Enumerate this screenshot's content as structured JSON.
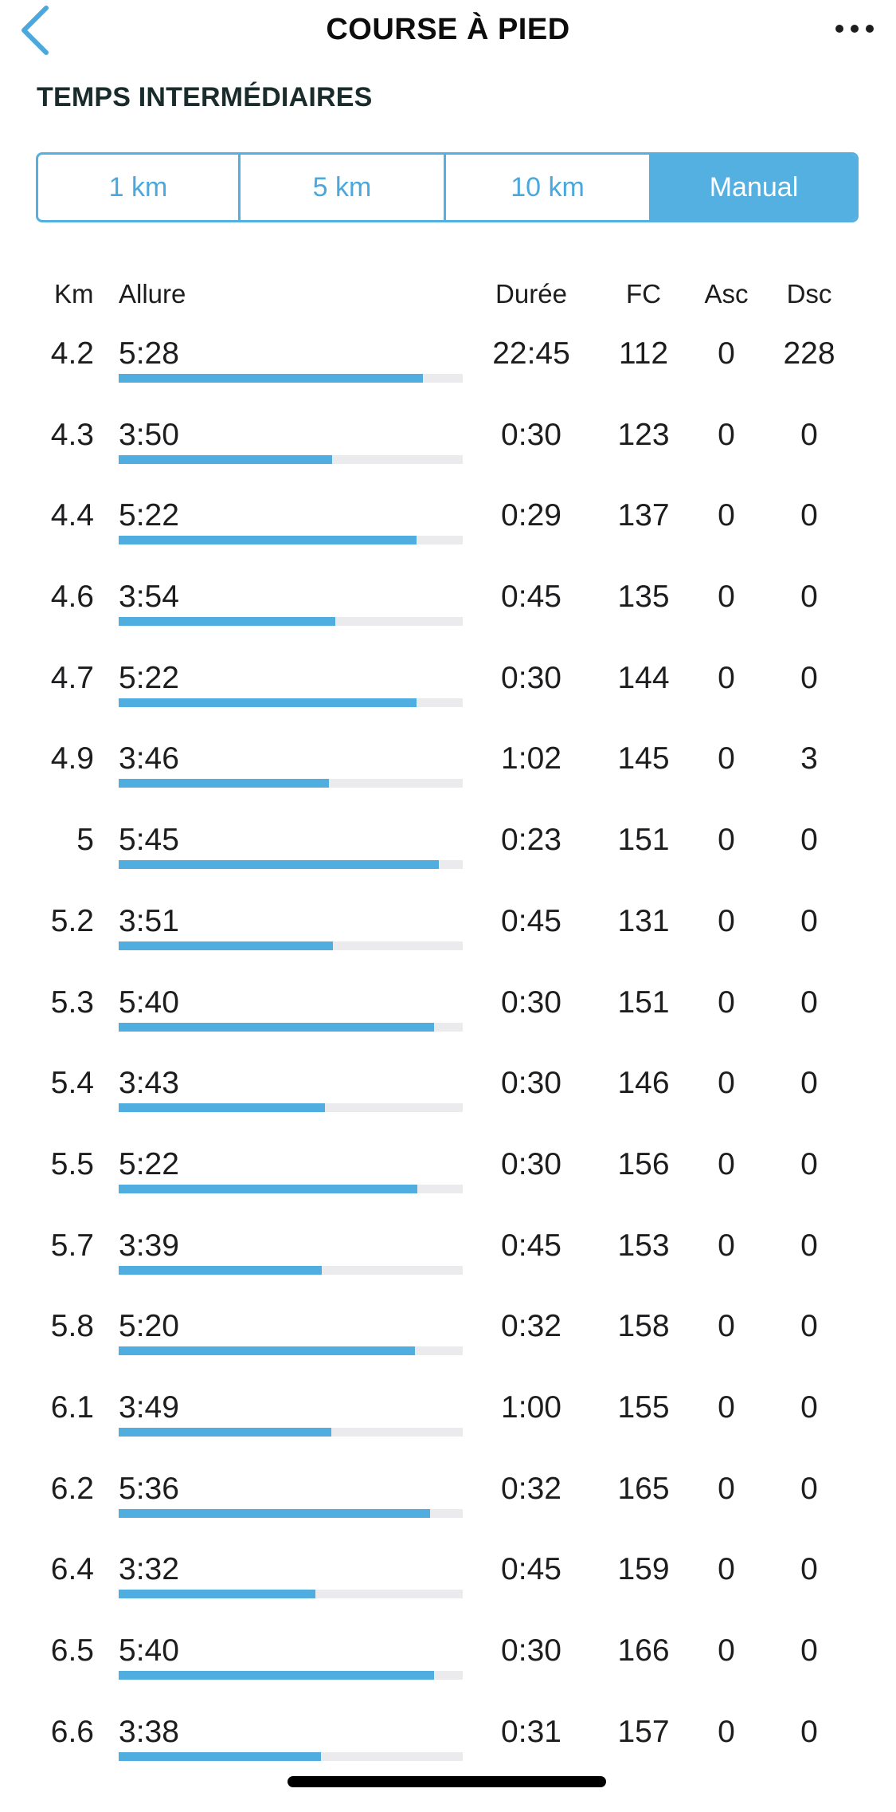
{
  "nav": {
    "title": "COURSE À PIED",
    "back_icon": "chevron-left-icon",
    "more_icon": "ellipsis-icon",
    "accent_color": "#54b0e0"
  },
  "section_title": "TEMPS INTERMÉDIAIRES",
  "segments": [
    {
      "label": "1 km",
      "selected": false
    },
    {
      "label": "5 km",
      "selected": false
    },
    {
      "label": "10 km",
      "selected": false
    },
    {
      "label": "Manual",
      "selected": true
    }
  ],
  "table": {
    "headers": {
      "km": "Km",
      "pace": "Allure",
      "duration": "Durée",
      "hr": "FC",
      "asc": "Asc",
      "dsc": "Dsc"
    },
    "rows": [
      {
        "km": "4.2",
        "pace": "5:28",
        "pace_fraction": 0.885,
        "duration": "22:45",
        "hr": "112",
        "asc": "0",
        "dsc": "228"
      },
      {
        "km": "4.3",
        "pace": "3:50",
        "pace_fraction": 0.62,
        "duration": "0:30",
        "hr": "123",
        "asc": "0",
        "dsc": "0"
      },
      {
        "km": "4.4",
        "pace": "5:22",
        "pace_fraction": 0.865,
        "duration": "0:29",
        "hr": "137",
        "asc": "0",
        "dsc": "0"
      },
      {
        "km": "4.6",
        "pace": "3:54",
        "pace_fraction": 0.63,
        "duration": "0:45",
        "hr": "135",
        "asc": "0",
        "dsc": "0"
      },
      {
        "km": "4.7",
        "pace": "5:22",
        "pace_fraction": 0.865,
        "duration": "0:30",
        "hr": "144",
        "asc": "0",
        "dsc": "0"
      },
      {
        "km": "4.9",
        "pace": "3:46",
        "pace_fraction": 0.61,
        "duration": "1:02",
        "hr": "145",
        "asc": "0",
        "dsc": "3"
      },
      {
        "km": "5",
        "pace": "5:45",
        "pace_fraction": 0.93,
        "duration": "0:23",
        "hr": "151",
        "asc": "0",
        "dsc": "0"
      },
      {
        "km": "5.2",
        "pace": "3:51",
        "pace_fraction": 0.623,
        "duration": "0:45",
        "hr": "131",
        "asc": "0",
        "dsc": "0"
      },
      {
        "km": "5.3",
        "pace": "5:40",
        "pace_fraction": 0.917,
        "duration": "0:30",
        "hr": "151",
        "asc": "0",
        "dsc": "0"
      },
      {
        "km": "5.4",
        "pace": "3:43",
        "pace_fraction": 0.6,
        "duration": "0:30",
        "hr": "146",
        "asc": "0",
        "dsc": "0"
      },
      {
        "km": "5.5",
        "pace": "5:22",
        "pace_fraction": 0.868,
        "duration": "0:30",
        "hr": "156",
        "asc": "0",
        "dsc": "0"
      },
      {
        "km": "5.7",
        "pace": "3:39",
        "pace_fraction": 0.59,
        "duration": "0:45",
        "hr": "153",
        "asc": "0",
        "dsc": "0"
      },
      {
        "km": "5.8",
        "pace": "5:20",
        "pace_fraction": 0.862,
        "duration": "0:32",
        "hr": "158",
        "asc": "0",
        "dsc": "0"
      },
      {
        "km": "6.1",
        "pace": "3:49",
        "pace_fraction": 0.617,
        "duration": "1:00",
        "hr": "155",
        "asc": "0",
        "dsc": "0"
      },
      {
        "km": "6.2",
        "pace": "5:36",
        "pace_fraction": 0.906,
        "duration": "0:32",
        "hr": "165",
        "asc": "0",
        "dsc": "0"
      },
      {
        "km": "6.4",
        "pace": "3:32",
        "pace_fraction": 0.571,
        "duration": "0:45",
        "hr": "159",
        "asc": "0",
        "dsc": "0"
      },
      {
        "km": "6.5",
        "pace": "5:40",
        "pace_fraction": 0.917,
        "duration": "0:30",
        "hr": "166",
        "asc": "0",
        "dsc": "0"
      },
      {
        "km": "6.6",
        "pace": "3:38",
        "pace_fraction": 0.588,
        "duration": "0:31",
        "hr": "157",
        "asc": "0",
        "dsc": "0"
      }
    ]
  }
}
